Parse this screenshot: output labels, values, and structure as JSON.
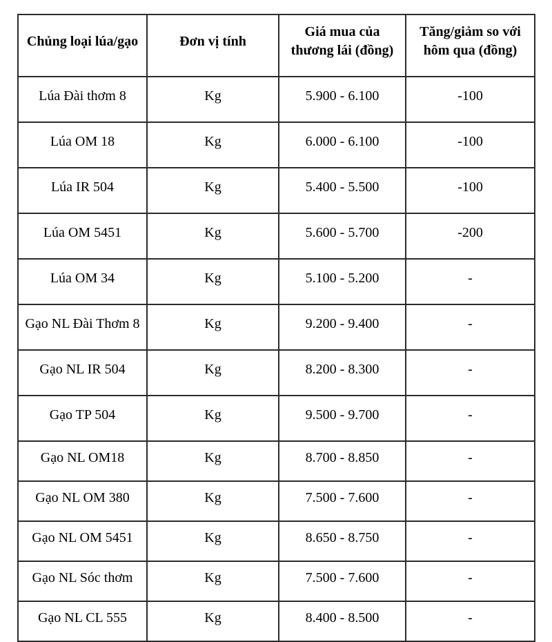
{
  "page": {
    "background": "#ffffff",
    "text_color": "#000000",
    "border_color": "#2b2b2b"
  },
  "table": {
    "name": "rice-price-table",
    "columns": [
      "Chủng loại lúa/gạo",
      "Đơn vị tính",
      "Giá mua của\nthương lái (đồng)",
      "Tăng/giảm so với\nhôm qua (đồng)"
    ],
    "rows": [
      [
        "Lúa Đài thơm 8",
        "Kg",
        "5.900 - 6.100",
        "-100"
      ],
      [
        "Lúa OM 18",
        "Kg",
        "6.000 - 6.100",
        "-100"
      ],
      [
        "Lúa IR 504",
        "Kg",
        "5.400 - 5.500",
        "-100"
      ],
      [
        "Lúa OM 5451",
        "Kg",
        "5.600 - 5.700",
        "-200"
      ],
      [
        "Lúa OM 34",
        "Kg",
        "5.100 - 5.200",
        "-"
      ],
      [
        "Gạo NL Đài Thơm 8",
        "Kg",
        "9.200 - 9.400",
        "-"
      ],
      [
        "Gạo NL IR 504",
        "Kg",
        "8.200 - 8.300",
        "-"
      ],
      [
        "Gạo TP 504",
        "Kg",
        "9.500 - 9.700",
        "-"
      ],
      [
        "Gạo NL OM18",
        "Kg",
        "8.700 - 8.850",
        "-"
      ],
      [
        "Gạo NL OM 380",
        "Kg",
        "7.500 - 7.600",
        "-"
      ],
      [
        "Gạo NL OM 5451",
        "Kg",
        "8.650 - 8.750",
        "-"
      ],
      [
        "Gạo NL Sóc thơm",
        "Kg",
        "7.500 - 7.600",
        "-"
      ],
      [
        "Gạo NL CL 555",
        "Kg",
        "8.400 - 8.500",
        "-"
      ]
    ]
  }
}
